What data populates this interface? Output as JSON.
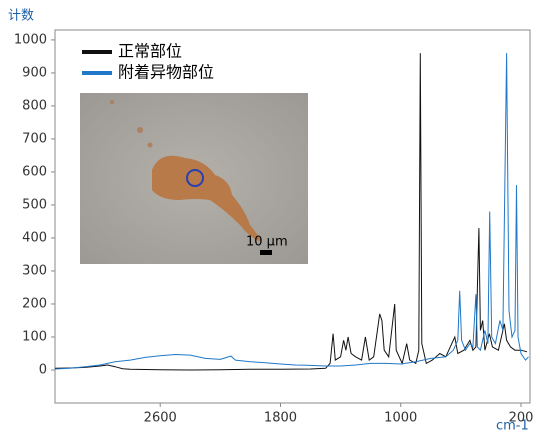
{
  "chart_data": {
    "type": "line",
    "y_label": "计数",
    "x_label": "cm-1",
    "xlim": [
      3300,
      140
    ],
    "ylim": [
      -100,
      1030
    ],
    "xticks": [
      2600,
      1800,
      1000,
      200
    ],
    "yticks": [
      0,
      100,
      200,
      300,
      400,
      500,
      600,
      700,
      800,
      900,
      1000
    ],
    "scale_label": "10 μm",
    "series": [
      {
        "name": "正常部位",
        "color": "#111111",
        "x": [
          3300,
          3200,
          3100,
          3000,
          2950,
          2900,
          2850,
          2800,
          2600,
          2400,
          2200,
          2000,
          1800,
          1600,
          1500,
          1470,
          1450,
          1435,
          1400,
          1380,
          1365,
          1350,
          1330,
          1300,
          1260,
          1235,
          1210,
          1180,
          1140,
          1125,
          1110,
          1080,
          1040,
          1030,
          990,
          960,
          940,
          900,
          880,
          870,
          860,
          830,
          790,
          740,
          700,
          660,
          640,
          620,
          580,
          540,
          520,
          500,
          480,
          470,
          455,
          440,
          410,
          390,
          350,
          310,
          296,
          270,
          240,
          200,
          160
        ],
        "values": [
          5,
          6,
          8,
          12,
          15,
          10,
          4,
          2,
          1,
          0,
          1,
          2,
          2,
          3,
          5,
          20,
          110,
          30,
          40,
          90,
          60,
          100,
          50,
          40,
          30,
          100,
          30,
          40,
          170,
          150,
          60,
          40,
          200,
          60,
          20,
          80,
          30,
          20,
          60,
          960,
          80,
          20,
          30,
          50,
          40,
          80,
          100,
          50,
          60,
          90,
          60,
          70,
          430,
          120,
          150,
          60,
          110,
          70,
          60,
          140,
          90,
          70,
          60,
          60,
          55
        ]
      },
      {
        "name": "附着异物部位",
        "color": "#1f78c8",
        "x": [
          3300,
          3200,
          3100,
          3000,
          2900,
          2800,
          2700,
          2600,
          2500,
          2400,
          2300,
          2200,
          2130,
          2100,
          2000,
          1900,
          1800,
          1700,
          1600,
          1500,
          1400,
          1300,
          1200,
          1100,
          1000,
          900,
          800,
          700,
          650,
          620,
          608,
          595,
          570,
          540,
          520,
          500,
          490,
          470,
          440,
          420,
          408,
          395,
          370,
          340,
          320,
          296,
          280,
          260,
          240,
          230,
          220,
          200,
          170,
          150
        ],
        "values": [
          3,
          5,
          10,
          15,
          25,
          30,
          38,
          43,
          47,
          45,
          35,
          32,
          42,
          30,
          25,
          22,
          18,
          15,
          14,
          12,
          12,
          15,
          20,
          20,
          18,
          25,
          35,
          40,
          60,
          90,
          240,
          90,
          60,
          80,
          70,
          230,
          70,
          60,
          120,
          80,
          480,
          100,
          80,
          150,
          120,
          960,
          180,
          100,
          120,
          560,
          100,
          50,
          30,
          40
        ]
      }
    ]
  }
}
